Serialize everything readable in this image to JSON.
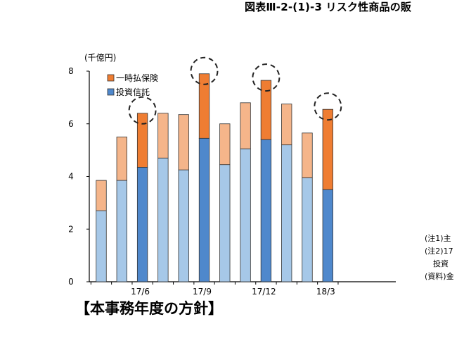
{
  "figure_title": "図表Ⅲ-2-(1)-3 リスク性商品の販",
  "notes": [
    "(注1)主",
    "(注2)17",
    "投資",
    "(資料)金"
  ],
  "section_heading": "【本事務年度の方針】",
  "chart_data": {
    "type": "bar",
    "stacked": true,
    "unit_label": "(千億円)",
    "ylim": [
      0,
      8
    ],
    "yticks": [
      "0",
      "2",
      "4",
      "6",
      "8"
    ],
    "x_tick_labels": [
      {
        "index": 2,
        "label": "17/6"
      },
      {
        "index": 5,
        "label": "17/9"
      },
      {
        "index": 8,
        "label": "17/12"
      },
      {
        "index": 11,
        "label": "18/3"
      }
    ],
    "series": [
      {
        "name": "投資信託",
        "values": [
          2.7,
          3.85,
          4.35,
          4.7,
          4.25,
          5.45,
          4.45,
          5.05,
          5.4,
          5.2,
          3.95,
          3.5
        ]
      },
      {
        "name": "一時払保険",
        "values": [
          1.15,
          1.65,
          2.05,
          1.7,
          2.1,
          2.45,
          1.55,
          1.75,
          2.25,
          1.55,
          1.7,
          3.05
        ]
      }
    ],
    "highlighted_indices": [
      2,
      5,
      8,
      11
    ],
    "colors": {
      "trust_light": "#a6c8e8",
      "trust_dark": "#4f88cc",
      "insurance_light": "#f5b58a",
      "insurance_dark": "#ef7d32",
      "border": "#333333"
    },
    "legend_position": "top-left",
    "grid": false
  }
}
